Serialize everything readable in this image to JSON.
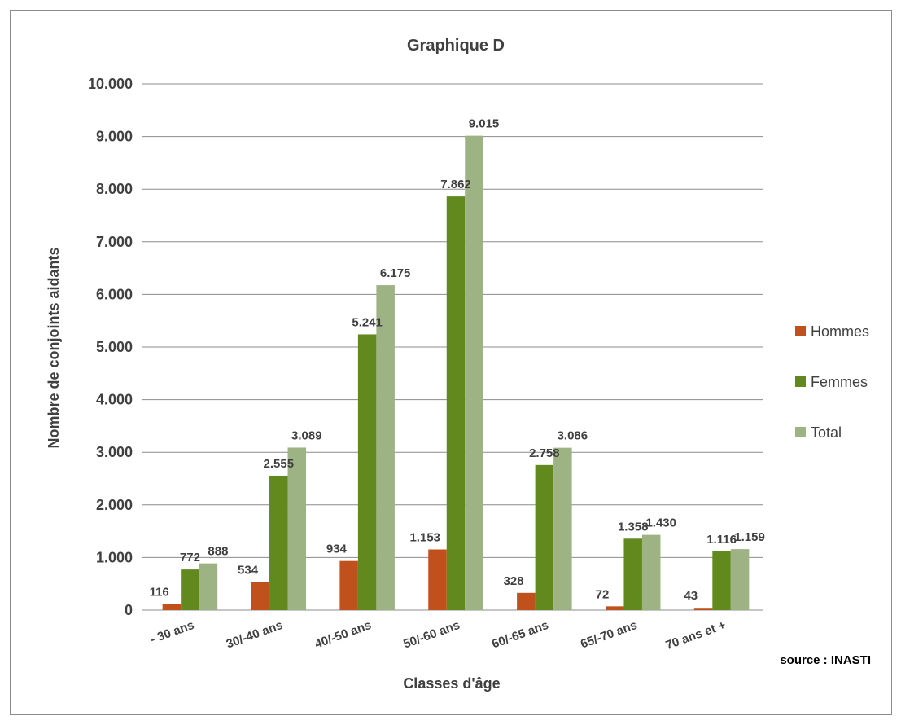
{
  "chart_data": {
    "type": "bar",
    "title": "Graphique D",
    "xlabel": "Classes d'âge",
    "ylabel": "Nombre  de conjoints aidants",
    "source": "source : INASTI",
    "ylim": [
      0,
      10000
    ],
    "yticks": [
      0,
      1000,
      2000,
      3000,
      4000,
      5000,
      6000,
      7000,
      8000,
      9000,
      10000
    ],
    "ytick_labels": [
      "0",
      "1.000",
      "2.000",
      "3.000",
      "4.000",
      "5.000",
      "6.000",
      "7.000",
      "8.000",
      "9.000",
      "10.000"
    ],
    "categories": [
      "- 30 ans",
      "30/-40 ans",
      "40/-50 ans",
      "50/-60 ans",
      "60/-65 ans",
      "65/-70 ans",
      "70 ans et +"
    ],
    "grid": true,
    "legend_position": "right",
    "series": [
      {
        "name": "Hommes",
        "color": "#c0501c",
        "values": [
          116,
          534,
          934,
          1153,
          328,
          72,
          43
        ],
        "labels": [
          "116",
          "534",
          "934",
          "1.153",
          "328",
          "72",
          "43"
        ]
      },
      {
        "name": "Femmes",
        "color": "#62891e",
        "values": [
          772,
          2555,
          5241,
          7862,
          2758,
          1358,
          1116
        ],
        "labels": [
          "772",
          "2.555",
          "5.241",
          "7.862",
          "2.758",
          "1.358",
          "1.116"
        ]
      },
      {
        "name": "Total",
        "color": "#9db384",
        "values": [
          888,
          3089,
          6175,
          9015,
          3086,
          1430,
          1159
        ],
        "labels": [
          "888",
          "3.089",
          "6.175",
          "9.015",
          "3.086",
          "1.430",
          "1.159"
        ]
      }
    ]
  }
}
